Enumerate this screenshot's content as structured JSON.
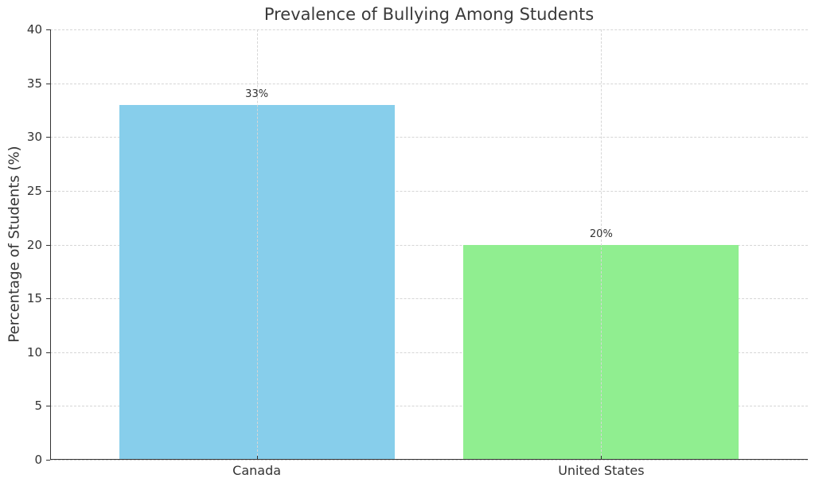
{
  "chart_data": {
    "type": "bar",
    "title": "Prevalence of Bullying Among Students",
    "xlabel": "",
    "ylabel": "Percentage of Students (%)",
    "categories": [
      "Canada",
      "United States"
    ],
    "values": [
      33,
      20
    ],
    "value_labels": [
      "33%",
      "20%"
    ],
    "colors": [
      "#87ceeb",
      "#90ee90"
    ],
    "ylim": [
      0,
      40
    ],
    "yticks": [
      0,
      5,
      10,
      15,
      20,
      25,
      30,
      35,
      40
    ],
    "grid": true,
    "legend": null
  }
}
